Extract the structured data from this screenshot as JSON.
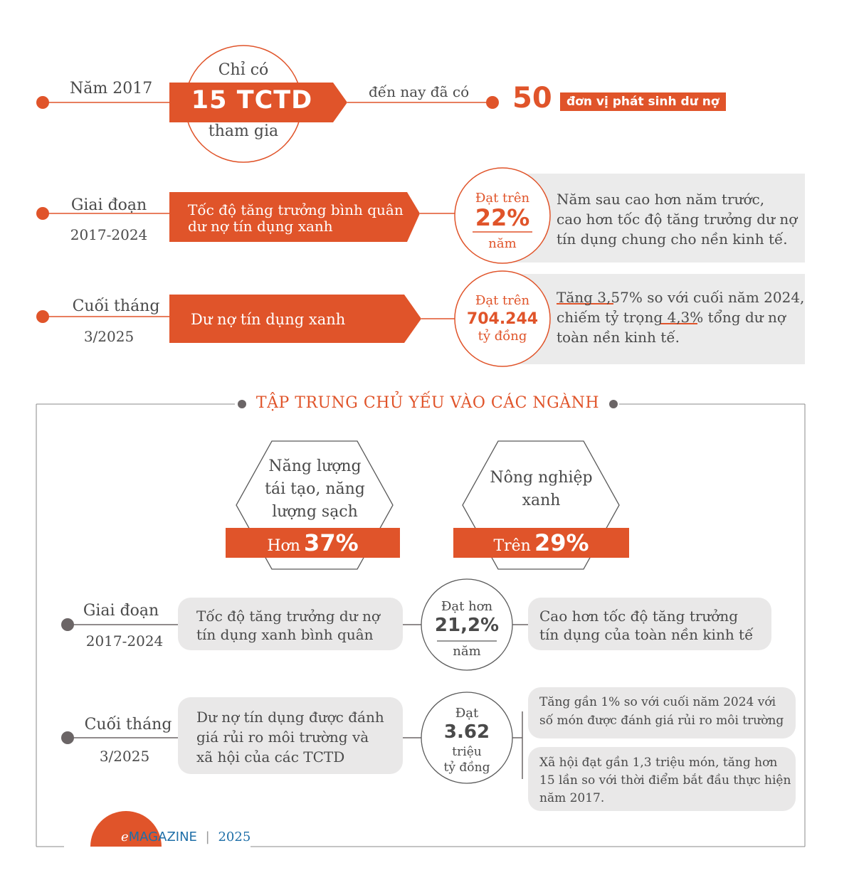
{
  "top": {
    "row1": {
      "year": "Năm 2017",
      "circle_top": "Chỉ có",
      "circle_big": "15 TCTD",
      "circle_bottom": "tham gia",
      "arrow_text": "đến nay đã có",
      "big_num": "50",
      "big_label": "đơn vị phát sinh dư nợ"
    },
    "row2": {
      "label_line1": "Giai đoạn",
      "label_line2": "2017-2024",
      "banner_line1": "Tốc độ tăng trưởng bình quân",
      "banner_line2": "dư nợ tín dụng xanh",
      "circle_top": "Đạt trên",
      "circle_big": "22%",
      "circle_bottom": "năm",
      "note_line1": "Năm sau cao hơn năm trước,",
      "note_line2": "cao hơn tốc độ tăng trưởng dư nợ",
      "note_line3": "tín dụng chung cho nền kinh tế."
    },
    "row3": {
      "label_line1": "Cuối tháng",
      "label_line2": "3/2025",
      "banner": "Dư nợ tín dụng xanh",
      "circle_top": "Đạt trên",
      "circle_big": "704.244",
      "circle_bottom": "tỷ đồng",
      "note_line1": "Tăng 3,57% so với cuối năm 2024,",
      "note_line2": "chiếm tỷ trọng 4,3% tổng dư nợ",
      "note_line3": "toàn nền kinh tế."
    }
  },
  "section": {
    "title": "TẬP TRUNG CHỦ YẾU VÀO CÁC NGÀNH",
    "sectors": [
      {
        "line1": "Năng lượng",
        "line2": "tái tạo, năng",
        "line3": "lượng sạch",
        "prefix": "Hơn",
        "value": "37%"
      },
      {
        "line1": "Nông nghiệp",
        "line2": "xanh",
        "line3": "",
        "prefix": "Trên",
        "value": "29%"
      }
    ],
    "row4": {
      "label_line1": "Giai đoạn",
      "label_line2": "2017-2024",
      "pill_line1": "Tốc độ tăng trưởng dư nợ",
      "pill_line2": "tín dụng xanh bình quân",
      "circle_top": "Đạt hơn",
      "circle_big": "21,2%",
      "circle_bottom": "năm",
      "note_line1": "Cao hơn tốc độ tăng trưởng",
      "note_line2": "tín dụng của toàn nền kinh tế"
    },
    "row5": {
      "label_line1": "Cuối tháng",
      "label_line2": "3/2025",
      "pill_line1": "Dư nợ tín dụng được đánh",
      "pill_line2": "giá rủi ro môi trường và",
      "pill_line3": "xã hội của các TCTD",
      "circle_top": "Đạt",
      "circle_big": "3.62",
      "circle_mid": "triệu",
      "circle_bottom": "tỷ đồng",
      "note_a_line1": "Tăng gần 1% so với cuối năm 2024 với",
      "note_a_line2": "số món được đánh giá rủi ro môi trường",
      "note_b_line1": "Xã hội đạt gần 1,3 triệu món, tăng hơn",
      "note_b_line2": "15 lần so với thời điểm bắt đầu thực hiện",
      "note_b_line3": "năm 2017."
    }
  },
  "footer": {
    "brand_e": "e",
    "brand": "MAGAZINE",
    "sep": "|",
    "year": "2025"
  },
  "colors": {
    "orange": "#e0542a",
    "grey_panel": "#ebebeb",
    "dark_dot": "#6b6566"
  }
}
